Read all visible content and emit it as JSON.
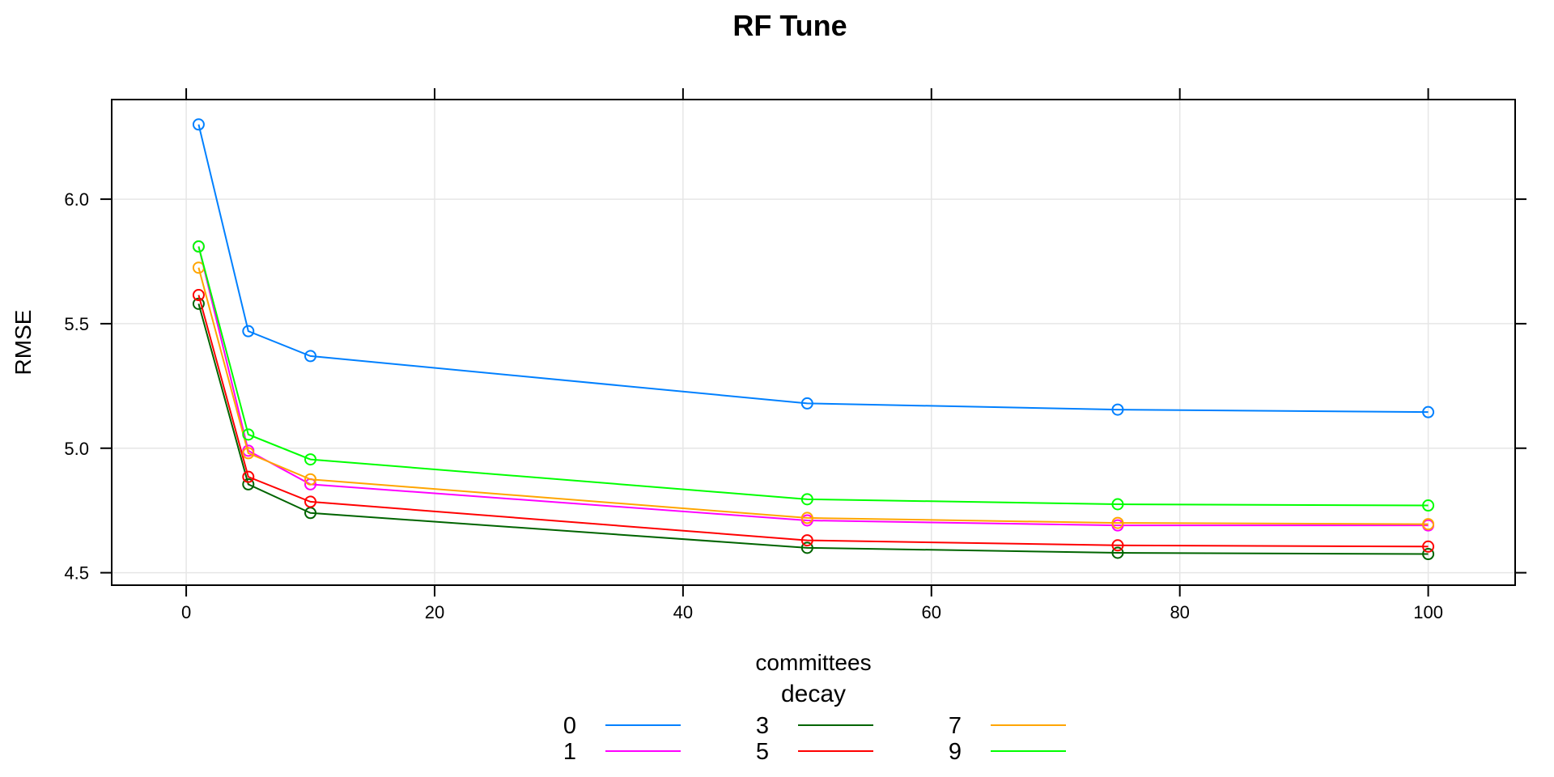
{
  "chart_data": {
    "type": "line",
    "title": "RF Tune",
    "xlabel": "committees",
    "ylabel": "RMSE",
    "x": [
      1,
      5,
      10,
      50,
      75,
      100
    ],
    "xlim": [
      -6,
      107
    ],
    "ylim": [
      4.45,
      6.4
    ],
    "x_ticks": [
      0,
      20,
      40,
      60,
      80,
      100
    ],
    "y_ticks": [
      4.5,
      5.0,
      5.5,
      6.0
    ],
    "x_tick_labels": [
      "0",
      "20",
      "40",
      "60",
      "80",
      "100"
    ],
    "y_tick_labels": [
      "4.5",
      "5.0",
      "5.5",
      "6.0"
    ],
    "grid": true,
    "markers": "open-circle",
    "legend": {
      "title": "decay",
      "placement": "bottom",
      "entries": [
        "0",
        "1",
        "3",
        "5",
        "7",
        "9"
      ]
    },
    "series": [
      {
        "name": "0",
        "color": "#0080ff",
        "values": [
          6.3,
          5.47,
          5.37,
          5.18,
          5.155,
          5.145
        ]
      },
      {
        "name": "1",
        "color": "#ff00ff",
        "values": [
          5.81,
          4.99,
          4.855,
          4.71,
          4.69,
          4.69
        ]
      },
      {
        "name": "3",
        "color": "#006400",
        "values": [
          5.58,
          4.855,
          4.74,
          4.6,
          4.58,
          4.575
        ]
      },
      {
        "name": "5",
        "color": "#ff0000",
        "values": [
          5.615,
          4.885,
          4.785,
          4.63,
          4.61,
          4.605
        ]
      },
      {
        "name": "7",
        "color": "#ffa500",
        "values": [
          5.725,
          4.98,
          4.875,
          4.72,
          4.7,
          4.695
        ]
      },
      {
        "name": "9",
        "color": "#00ff00",
        "values": [
          5.81,
          5.055,
          4.955,
          4.795,
          4.775,
          4.77
        ]
      }
    ]
  }
}
